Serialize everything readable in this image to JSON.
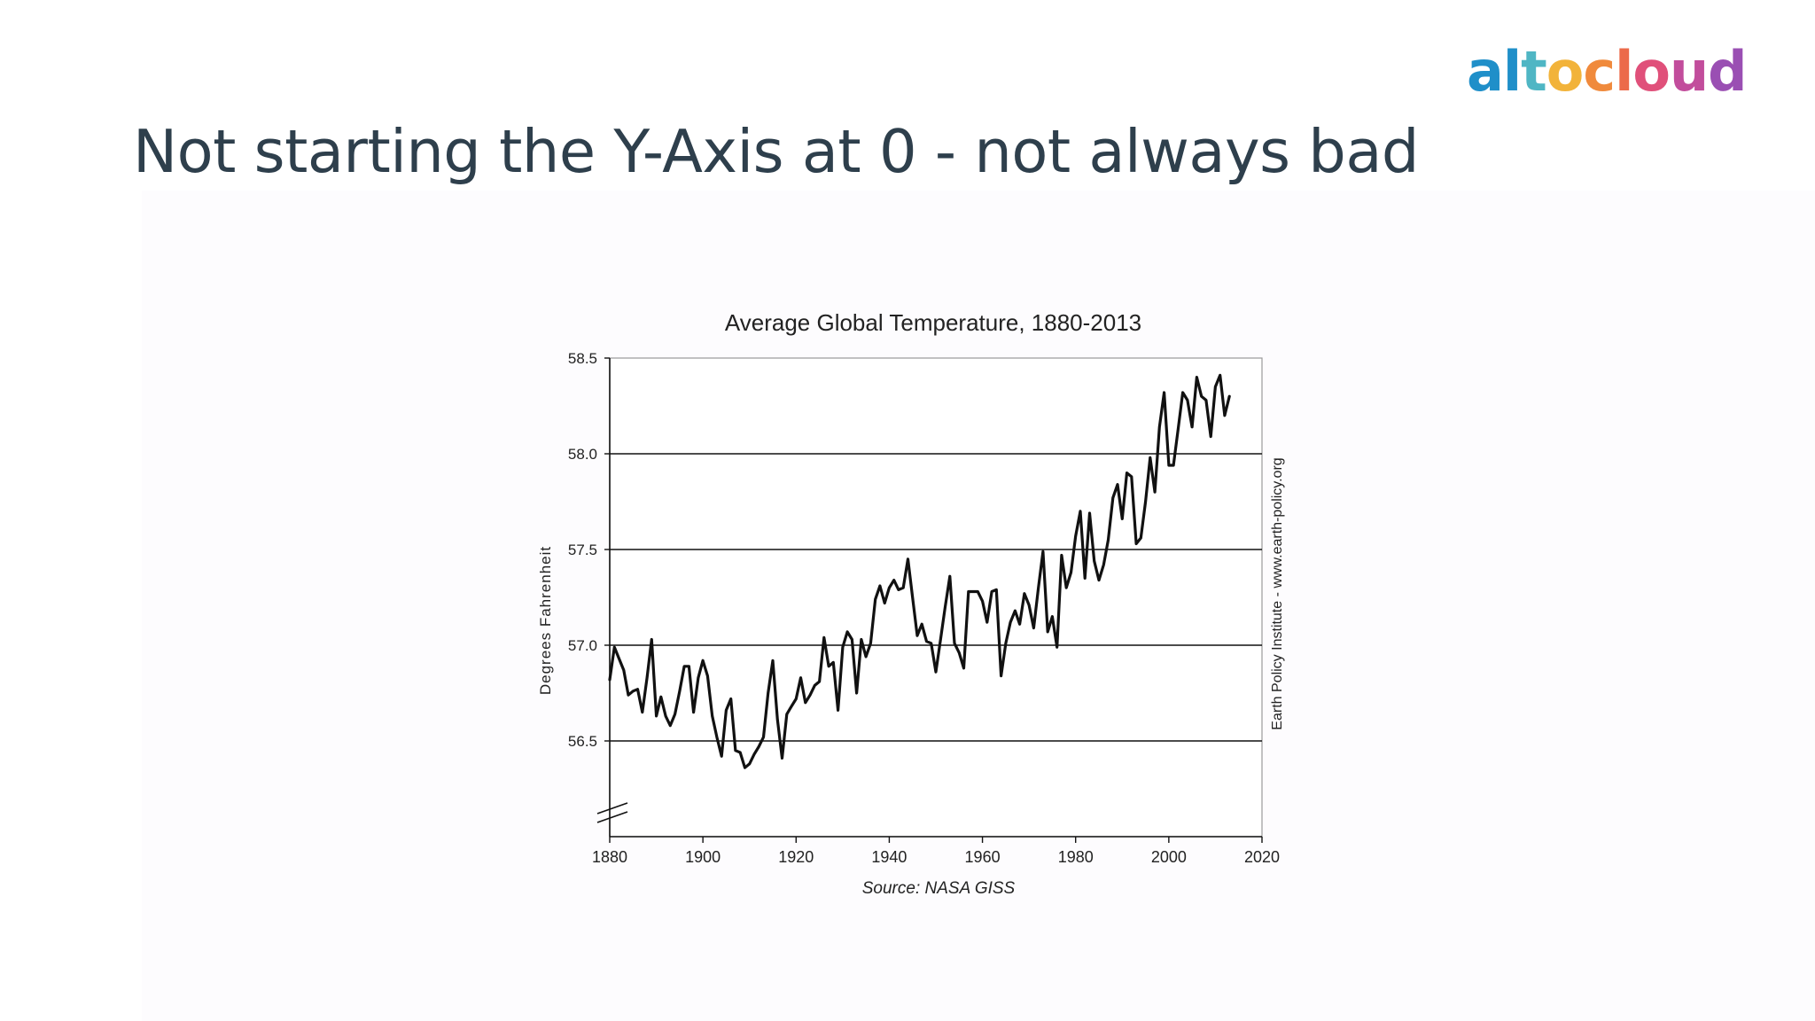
{
  "brand": {
    "logo_text": "altocloud",
    "logo_colors": [
      "#1f8fc9",
      "#1f8fc9",
      "#4fb6c4",
      "#f2b33a",
      "#f08a3c",
      "#ec6a4a",
      "#e0507a",
      "#c24d9c",
      "#9a4fb3"
    ]
  },
  "slide": {
    "title": "Not starting the Y-Axis at 0 - not always bad",
    "title_color": "#2e3f4c"
  },
  "chart_data": {
    "type": "line",
    "title": "Average Global Temperature, 1880-2013",
    "xlabel": "Source: NASA GISS",
    "ylabel": "Degrees Fahrenheit",
    "right_label": "Earth Policy Institute - www.earth-policy.org",
    "xlim": [
      1880,
      2020
    ],
    "ylim": [
      56.0,
      58.5
    ],
    "xticks": [
      "1880",
      "1900",
      "1920",
      "1940",
      "1960",
      "1980",
      "2000",
      "2020"
    ],
    "yticks": [
      "56.5",
      "57.0",
      "57.5",
      "58.0",
      "58.5"
    ],
    "axis_break": true,
    "grid": "horizontal",
    "line_color": "#111111",
    "series": [
      {
        "x": [
          1880,
          1881,
          1882,
          1883,
          1884,
          1885,
          1886,
          1887,
          1888,
          1889,
          1890,
          1891,
          1892,
          1893,
          1894,
          1895,
          1896,
          1897,
          1898,
          1899,
          1900,
          1901,
          1902,
          1903,
          1904,
          1905,
          1906,
          1907,
          1908,
          1909,
          1910,
          1911,
          1912,
          1913,
          1914,
          1915,
          1916,
          1917,
          1918,
          1919,
          1920,
          1921,
          1922,
          1923,
          1924,
          1925,
          1926,
          1927,
          1928,
          1929,
          1930,
          1931,
          1932,
          1933,
          1934,
          1935,
          1936,
          1937,
          1938,
          1939,
          1940,
          1941,
          1942,
          1943,
          1944,
          1945,
          1946,
          1947,
          1948,
          1949,
          1950,
          1951,
          1952,
          1953,
          1954,
          1955,
          1956,
          1957,
          1958,
          1959,
          1960,
          1961,
          1962,
          1963,
          1964,
          1965,
          1966,
          1967,
          1968,
          1969,
          1970,
          1971,
          1972,
          1973,
          1974,
          1975,
          1976,
          1977,
          1978,
          1979,
          1980,
          1981,
          1982,
          1983,
          1984,
          1985,
          1986,
          1987,
          1988,
          1989,
          1990,
          1991,
          1992,
          1993,
          1994,
          1995,
          1996,
          1997,
          1998,
          1999,
          2000,
          2001,
          2002,
          2003,
          2004,
          2005,
          2006,
          2007,
          2008,
          2009,
          2010,
          2011,
          2012,
          2013
        ],
        "values": [
          56.82,
          56.99,
          56.93,
          56.87,
          56.74,
          56.76,
          56.77,
          56.65,
          56.83,
          57.03,
          56.63,
          56.73,
          56.63,
          56.58,
          56.64,
          56.76,
          56.89,
          56.89,
          56.65,
          56.83,
          56.92,
          56.84,
          56.63,
          56.52,
          56.42,
          56.66,
          56.72,
          56.45,
          56.44,
          56.36,
          56.38,
          56.43,
          56.47,
          56.52,
          56.75,
          56.92,
          56.61,
          56.41,
          56.64,
          56.68,
          56.72,
          56.83,
          56.7,
          56.74,
          56.79,
          56.81,
          57.04,
          56.89,
          56.91,
          56.66,
          56.99,
          57.07,
          57.03,
          56.75,
          57.03,
          56.94,
          57.01,
          57.24,
          57.31,
          57.22,
          57.3,
          57.34,
          57.29,
          57.3,
          57.45,
          57.25,
          57.05,
          57.11,
          57.02,
          57.01,
          56.86,
          57.03,
          57.2,
          57.36,
          57.01,
          56.96,
          56.88,
          57.28,
          57.28,
          57.28,
          57.23,
          57.12,
          57.28,
          57.29,
          56.84,
          57.01,
          57.12,
          57.18,
          57.11,
          57.27,
          57.21,
          57.09,
          57.3,
          57.49,
          57.07,
          57.15,
          56.99,
          57.47,
          57.3,
          57.38,
          57.57,
          57.7,
          57.35,
          57.69,
          57.44,
          57.34,
          57.42,
          57.55,
          57.77,
          57.84,
          57.66,
          57.9,
          57.88,
          57.53,
          57.56,
          57.75,
          57.98,
          57.8,
          58.14,
          58.32,
          57.94,
          57.94,
          58.13,
          58.32,
          58.28,
          58.14,
          58.4,
          58.3,
          58.28,
          58.09,
          58.35,
          58.41,
          58.2,
          58.3
        ]
      }
    ]
  }
}
